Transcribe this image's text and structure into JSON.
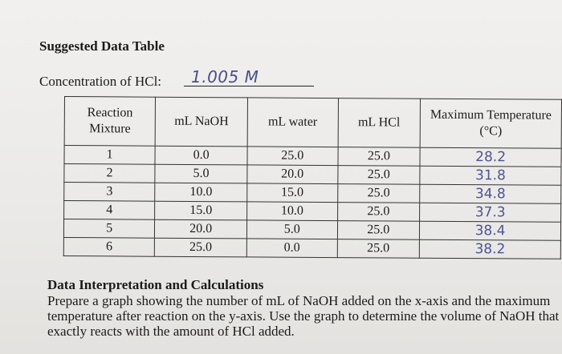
{
  "heading": "Suggested Data Table",
  "concentration": {
    "label": "Concentration of HCl:",
    "value": "1.005 M"
  },
  "table": {
    "headers": [
      "Reaction Mixture",
      "mL NaOH",
      "mL water",
      "mL HCl",
      "Maximum Temperature (°C)"
    ],
    "rows": [
      [
        "1",
        "0.0",
        "25.0",
        "25.0",
        "28.2"
      ],
      [
        "2",
        "5.0",
        "20.0",
        "25.0",
        "31.8"
      ],
      [
        "3",
        "10.0",
        "15.0",
        "25.0",
        "34.8"
      ],
      [
        "4",
        "15.0",
        "10.0",
        "25.0",
        "37.3"
      ],
      [
        "5",
        "20.0",
        "5.0",
        "25.0",
        "38.4"
      ],
      [
        "6",
        "25.0",
        "0.0",
        "25.0",
        "38.2"
      ]
    ]
  },
  "section": {
    "heading": "Data Interpretation and Calculations",
    "body": "Prepare a graph showing the number of mL of NaOH added on the x-axis and the maximum temperature after reaction on the y-axis. Use the graph to determine the volume of NaOH that exactly reacts with the amount of HCl added."
  }
}
